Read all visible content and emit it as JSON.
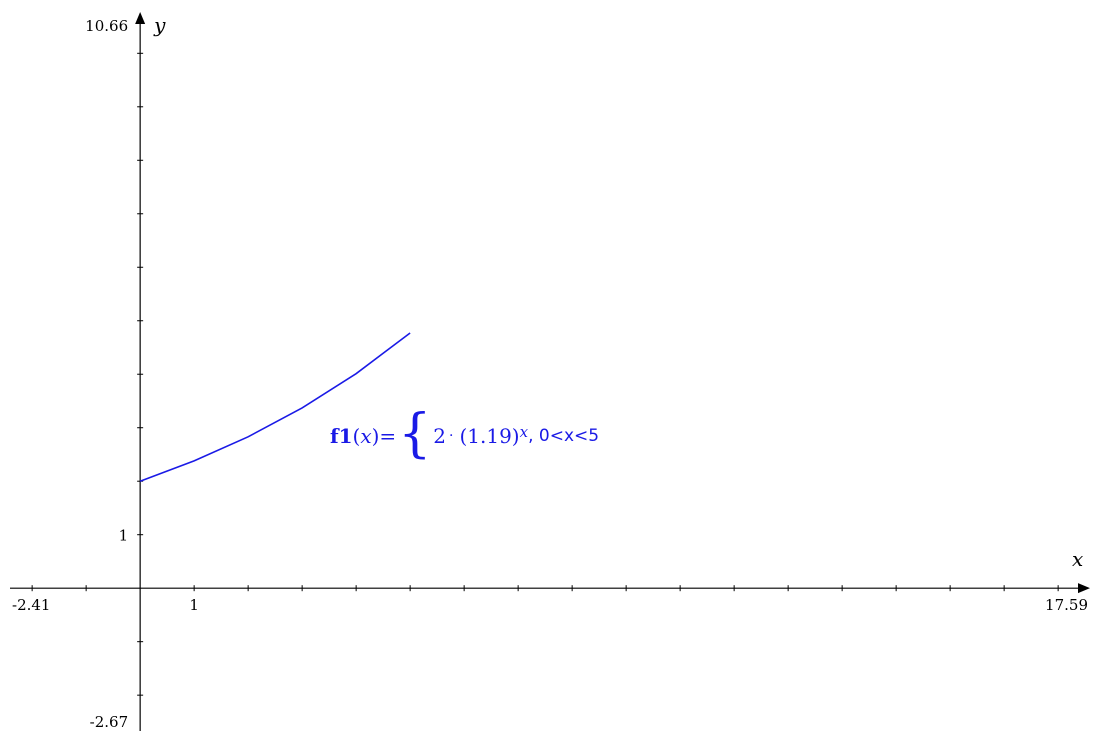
{
  "chart_data": {
    "type": "line",
    "xlabel": "x",
    "ylabel": "y",
    "xlim": [
      -2.41,
      17.59
    ],
    "ylim": [
      -2.67,
      10.66
    ],
    "x_tick_step": 1,
    "y_tick_step": 1,
    "x_tick_labels": [
      {
        "value": -2.41,
        "label": "-2.41"
      },
      {
        "value": 1,
        "label": "1"
      },
      {
        "value": 17.59,
        "label": "17.59"
      }
    ],
    "y_tick_labels": [
      {
        "value": 10.66,
        "label": "10.66"
      },
      {
        "value": 1,
        "label": "1"
      },
      {
        "value": -2.67,
        "label": "-2.67"
      }
    ],
    "series": [
      {
        "label": "f1(x)",
        "color": "#1a1ae6",
        "x": [
          0,
          1,
          2,
          3,
          4,
          5
        ],
        "y": [
          2,
          2.38,
          2.83,
          3.37,
          4.01,
          4.77
        ]
      }
    ],
    "formula": {
      "name": "f1",
      "arg": "x",
      "coefficient": "2",
      "base": "(1.19)",
      "exponent": "x",
      "condition": ", 0<x<5",
      "color": "#1a1ae6"
    }
  }
}
